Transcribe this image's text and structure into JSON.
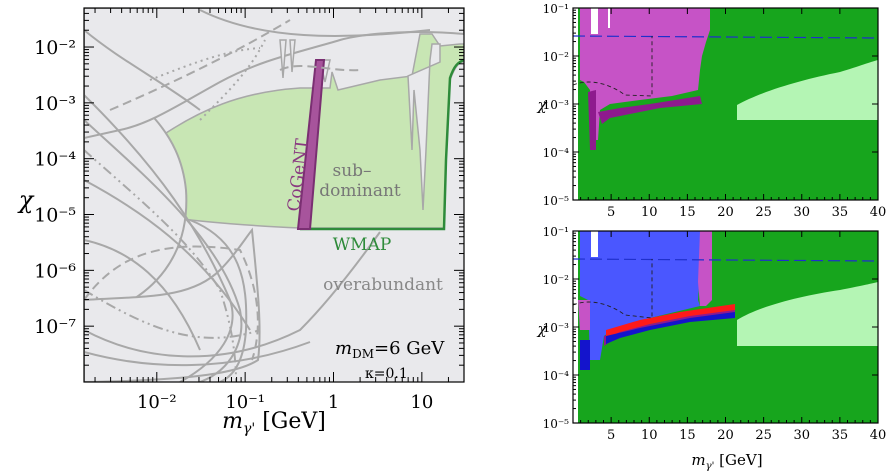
{
  "colors": {
    "excluded_grey": "#e9e9ec",
    "light_green": "#c8e6b4",
    "wmap_green": "#2e8b3a",
    "cogent_purple": "#a7549c",
    "scan_green": "#17a51d",
    "scan_light_green": "#b4f5b4",
    "scan_magenta": "#c653c6",
    "scan_purple": "#8e1a8e",
    "scan_blue": "#4a57ff",
    "scan_dark_blue": "#1414cc",
    "scan_red": "#ff1a1a"
  },
  "chart_data": [
    {
      "type": "area",
      "xlabel": "m_γ' [GeV]",
      "ylabel": "χ",
      "x_scale": "log",
      "y_scale": "log",
      "xlim": [
        0.0015,
        30
      ],
      "ylim": [
        1e-08,
        0.05
      ],
      "x_ticks": [
        "10⁻²",
        "10⁻¹",
        "1",
        "10"
      ],
      "y_ticks": [
        "10⁻⁷",
        "10⁻⁶",
        "10⁻⁵",
        "10⁻⁴",
        "10⁻³",
        "10⁻²"
      ],
      "regions": [
        {
          "name": "CoGeNT",
          "x_range": [
            0.4,
            0.55
          ],
          "y_range": [
            1e-05,
            0.002
          ]
        },
        {
          "name": "sub–dominant"
        },
        {
          "name": "WMAP",
          "y_floor": 1e-05,
          "x_range": [
            0.35,
            20
          ]
        },
        {
          "name": "overabundant"
        }
      ],
      "annotations": [
        "m_DM=6 GeV",
        "κ=0.1"
      ]
    },
    {
      "type": "heatmap",
      "xlabel": "",
      "ylabel": "χ",
      "x_scale": "linear",
      "y_scale": "log",
      "xlim": [
        0,
        40
      ],
      "ylim": [
        1e-05,
        0.1
      ],
      "x_ticks": [
        "5",
        "10",
        "15",
        "20",
        "25",
        "30",
        "35",
        "40"
      ],
      "y_ticks": [
        "10⁻⁵",
        "10⁻⁴",
        "10⁻³",
        "10⁻²",
        "10⁻¹"
      ],
      "dashed_line_y": 0.028
    },
    {
      "type": "heatmap",
      "xlabel": "m_γ' [GeV]",
      "ylabel": "χ",
      "x_scale": "linear",
      "y_scale": "log",
      "xlim": [
        0,
        40
      ],
      "ylim": [
        1e-05,
        0.1
      ],
      "x_ticks": [
        "5",
        "10",
        "15",
        "20",
        "25",
        "30",
        "35",
        "40"
      ],
      "y_ticks": [
        "10⁻⁵",
        "10⁻⁴",
        "10⁻³",
        "10⁻²",
        "10⁻¹"
      ],
      "dashed_line_y": 0.028
    }
  ],
  "labels": {
    "cogent": "CoGeNT",
    "sub1": "sub–",
    "sub2": "dominant",
    "wmap": "WMAP",
    "overabundant": "overabundant",
    "mdm_prefix": "m",
    "mdm_sub": "DM",
    "mdm_value": "=6 GeV",
    "kappa": "κ=0.1",
    "chi": "χ",
    "xlabel_m": "m",
    "xlabel_sub": "γ'",
    "xlabel_unit": " [GeV]",
    "xlabel_sub_small": "γ'"
  }
}
